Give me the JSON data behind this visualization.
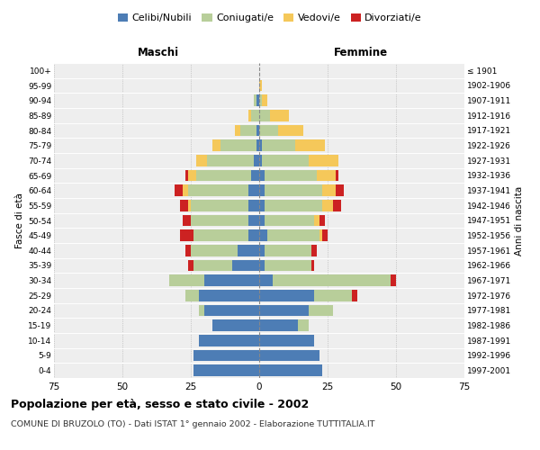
{
  "age_groups": [
    "0-4",
    "5-9",
    "10-14",
    "15-19",
    "20-24",
    "25-29",
    "30-34",
    "35-39",
    "40-44",
    "45-49",
    "50-54",
    "55-59",
    "60-64",
    "65-69",
    "70-74",
    "75-79",
    "80-84",
    "85-89",
    "90-94",
    "95-99",
    "100+"
  ],
  "birth_years": [
    "1997-2001",
    "1992-1996",
    "1987-1991",
    "1982-1986",
    "1977-1981",
    "1972-1976",
    "1967-1971",
    "1962-1966",
    "1957-1961",
    "1952-1956",
    "1947-1951",
    "1942-1946",
    "1937-1941",
    "1932-1936",
    "1927-1931",
    "1922-1926",
    "1917-1921",
    "1912-1916",
    "1907-1911",
    "1902-1906",
    "≤ 1901"
  ],
  "males_celibe": [
    24,
    24,
    22,
    17,
    20,
    22,
    20,
    10,
    8,
    4,
    4,
    4,
    4,
    3,
    2,
    1,
    1,
    0,
    1,
    0,
    0
  ],
  "males_coniugato": [
    0,
    0,
    0,
    0,
    2,
    5,
    13,
    14,
    17,
    20,
    21,
    21,
    22,
    20,
    17,
    13,
    6,
    3,
    1,
    0,
    0
  ],
  "males_vedovo": [
    0,
    0,
    0,
    0,
    0,
    0,
    0,
    0,
    0,
    0,
    0,
    1,
    2,
    3,
    4,
    3,
    2,
    1,
    0,
    0,
    0
  ],
  "males_divorziato": [
    0,
    0,
    0,
    0,
    0,
    0,
    0,
    2,
    2,
    5,
    3,
    3,
    3,
    1,
    0,
    0,
    0,
    0,
    0,
    0,
    0
  ],
  "females_nubile": [
    23,
    22,
    20,
    14,
    18,
    20,
    5,
    2,
    2,
    3,
    2,
    2,
    2,
    2,
    1,
    1,
    0,
    0,
    0,
    0,
    0
  ],
  "females_coniugata": [
    0,
    0,
    0,
    4,
    9,
    14,
    43,
    17,
    17,
    19,
    18,
    21,
    21,
    19,
    17,
    12,
    7,
    4,
    1,
    0,
    0
  ],
  "females_vedova": [
    0,
    0,
    0,
    0,
    0,
    0,
    0,
    0,
    0,
    1,
    2,
    4,
    5,
    7,
    11,
    11,
    9,
    7,
    2,
    1,
    0
  ],
  "females_divorziata": [
    0,
    0,
    0,
    0,
    0,
    2,
    2,
    1,
    2,
    2,
    2,
    3,
    3,
    1,
    0,
    0,
    0,
    0,
    0,
    0,
    0
  ],
  "col_celibe": "#4d7db5",
  "col_coniugato": "#b8ce9a",
  "col_vedovo": "#f5c85a",
  "col_divorziato": "#cc2222",
  "legend_labels": [
    "Celibi/Nubili",
    "Coniugati/e",
    "Vedovi/e",
    "Divorziati/e"
  ],
  "header_maschi": "Maschi",
  "header_femmine": "Femmine",
  "ylabel_left": "Fasce di età",
  "ylabel_right": "Anni di nascita",
  "title": "Popolazione per età, sesso e stato civile - 2002",
  "subtitle": "COMUNE DI BRUZOLO (TO) - Dati ISTAT 1° gennaio 2002 - Elaborazione TUTTITALIA.IT",
  "xlim": 75,
  "bg_color": "#eeeeee"
}
